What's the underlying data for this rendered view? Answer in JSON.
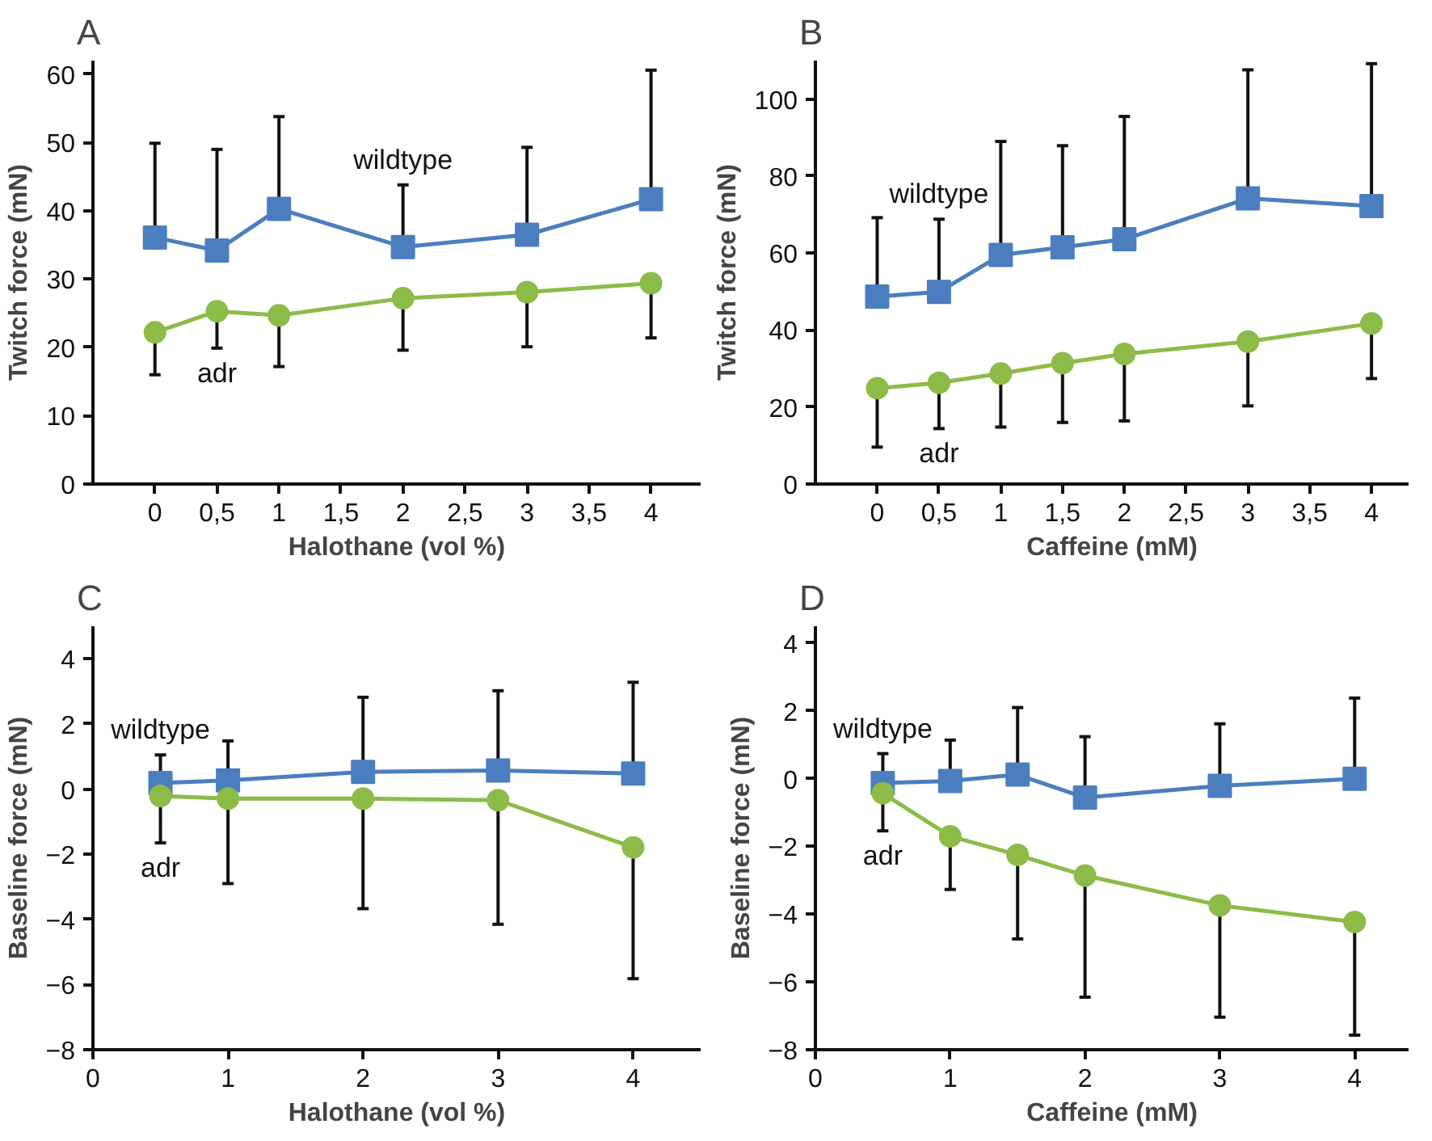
{
  "chart_data": [
    {
      "type": "line",
      "title": "A",
      "xlabel": "Halothane (vol %)",
      "ylabel": "Twitch force (mN)",
      "line_style": "solid",
      "grid": false,
      "x": [
        0,
        0.5,
        1,
        2,
        3,
        4
      ],
      "xlim": [
        -0.5,
        4.4
      ],
      "xticks": [
        0,
        {
          "value": 0.5,
          "label": "0,5"
        },
        1,
        {
          "value": 1.5,
          "label": "1,5"
        },
        2,
        {
          "value": 2.5,
          "label": "2,5"
        },
        3,
        {
          "value": 3.5,
          "label": "3,5"
        },
        4
      ],
      "ylim": [
        0,
        62
      ],
      "yticks": [
        0,
        10,
        20,
        30,
        40,
        50,
        60
      ],
      "series": [
        {
          "name": "wildtype",
          "color": "#4a7ebf",
          "marker": "square",
          "values": [
            36.1,
            34.2,
            40.3,
            34.7,
            36.5,
            41.7
          ],
          "errors": [
            [
              36.1,
              49.9
            ],
            [
              34.2,
              49.0
            ],
            [
              40.3,
              53.8
            ],
            [
              34.7,
              43.8
            ],
            [
              36.5,
              49.3
            ],
            [
              41.7,
              60.6
            ]
          ]
        },
        {
          "name": "adr",
          "color": "#8dbb48",
          "marker": "circle",
          "values": [
            22.2,
            25.3,
            24.7,
            27.2,
            28.1,
            29.4
          ],
          "errors": [
            [
              16.0,
              22.2
            ],
            [
              19.9,
              25.3
            ],
            [
              17.2,
              24.7
            ],
            [
              19.6,
              27.2
            ],
            [
              20.1,
              28.1
            ],
            [
              21.4,
              29.4
            ]
          ]
        }
      ]
    },
    {
      "type": "line",
      "title": "B",
      "xlabel": "Caffeine (mM)",
      "ylabel": "Twitch force (mN)",
      "line_style": "solid",
      "grid": false,
      "x": [
        0,
        0.5,
        1,
        1.5,
        2,
        3,
        4
      ],
      "xlim": [
        -0.5,
        4.3
      ],
      "xticks": [
        0,
        {
          "value": 0.5,
          "label": "0,5"
        },
        1,
        {
          "value": 1.5,
          "label": "1,5"
        },
        2,
        {
          "value": 2.5,
          "label": "2,5"
        },
        3,
        {
          "value": 3.5,
          "label": "3,5"
        },
        4
      ],
      "ylim": [
        0,
        110
      ],
      "yticks": [
        0,
        20,
        40,
        60,
        80,
        100
      ],
      "series": [
        {
          "name": "wildtype",
          "color": "#4a7ebf",
          "marker": "square",
          "values": [
            48.7,
            49.9,
            59.5,
            61.5,
            63.6,
            74.2,
            72.2
          ],
          "errors": [
            [
              48.7,
              69.2
            ],
            [
              49.9,
              68.8
            ],
            [
              59.5,
              89.0
            ],
            [
              61.5,
              87.9
            ],
            [
              63.6,
              95.5
            ],
            [
              74.2,
              107.6
            ],
            [
              72.2,
              109.2
            ]
          ]
        },
        {
          "name": "adr",
          "color": "#8dbb48",
          "marker": "circle",
          "values": [
            24.9,
            26.3,
            28.7,
            31.4,
            33.8,
            37.0,
            41.7
          ],
          "errors": [
            [
              9.6,
              24.9
            ],
            [
              14.4,
              26.3
            ],
            [
              14.8,
              28.7
            ],
            [
              16.0,
              31.4
            ],
            [
              16.4,
              33.8
            ],
            [
              20.3,
              37.0
            ],
            [
              27.4,
              41.7
            ]
          ]
        }
      ]
    },
    {
      "type": "line",
      "title": "C",
      "xlabel": "Halothane (vol %)",
      "ylabel": "Baseline force (mN)",
      "line_style": "solid",
      "grid": false,
      "x": [
        0.5,
        1,
        2,
        3,
        4
      ],
      "xlim": [
        0,
        4.5
      ],
      "xticks": [
        0,
        1,
        2,
        3,
        4
      ],
      "ylim": [
        -8,
        5
      ],
      "yticks": [
        {
          "value": -8,
          "label": "−8"
        },
        {
          "value": -6,
          "label": "−6"
        },
        {
          "value": -4,
          "label": "−4"
        },
        {
          "value": -2,
          "label": "−2"
        },
        0,
        2,
        4
      ],
      "series": [
        {
          "name": "wildtype",
          "color": "#4a7ebf",
          "marker": "square",
          "values": [
            0.19,
            0.27,
            0.53,
            0.57,
            0.48
          ],
          "errors": [
            [
              0.19,
              1.05
            ],
            [
              0.27,
              1.48
            ],
            [
              0.53,
              2.82
            ],
            [
              0.57,
              3.02
            ],
            [
              0.48,
              3.28
            ]
          ]
        },
        {
          "name": "adr",
          "color": "#8dbb48",
          "marker": "circle",
          "values": [
            -0.21,
            -0.29,
            -0.29,
            -0.34,
            -1.79
          ],
          "errors": [
            [
              -1.65,
              -0.21
            ],
            [
              -2.9,
              -0.29
            ],
            [
              -3.67,
              -0.29
            ],
            [
              -4.15,
              -0.34
            ],
            [
              -5.82,
              -1.79
            ]
          ]
        }
      ]
    },
    {
      "type": "line",
      "title": "D",
      "xlabel": "Caffeine (mM)",
      "ylabel": "Baseline force (mN)",
      "line_style": "solid",
      "grid": false,
      "x": [
        0.5,
        1,
        1.5,
        2,
        3,
        4
      ],
      "xlim": [
        0,
        4.4
      ],
      "xticks": [
        0,
        1,
        2,
        3,
        4
      ],
      "ylim": [
        -8,
        4.5
      ],
      "yticks": [
        {
          "value": -8,
          "label": "−8"
        },
        {
          "value": -6,
          "label": "−6"
        },
        {
          "value": -4,
          "label": "−4"
        },
        {
          "value": -2,
          "label": "−2"
        },
        0,
        2,
        4
      ],
      "series": [
        {
          "name": "wildtype",
          "color": "#4a7ebf",
          "marker": "square",
          "values": [
            -0.13,
            -0.07,
            0.12,
            -0.56,
            -0.21,
            0.0
          ],
          "errors": [
            [
              -0.13,
              0.74
            ],
            [
              -0.07,
              1.14
            ],
            [
              0.12,
              2.1
            ],
            [
              -0.56,
              1.24
            ],
            [
              -0.21,
              1.62
            ],
            [
              0.0,
              2.38
            ]
          ]
        },
        {
          "name": "adr",
          "color": "#8dbb48",
          "marker": "circle",
          "values": [
            -0.43,
            -1.7,
            -2.25,
            -2.86,
            -3.74,
            -4.23
          ],
          "errors": [
            [
              -1.54,
              -0.43
            ],
            [
              -3.27,
              -1.7
            ],
            [
              -4.73,
              -2.25
            ],
            [
              -6.45,
              -2.86
            ],
            [
              -7.04,
              -3.74
            ],
            [
              -7.57,
              -4.23
            ]
          ]
        }
      ]
    }
  ]
}
